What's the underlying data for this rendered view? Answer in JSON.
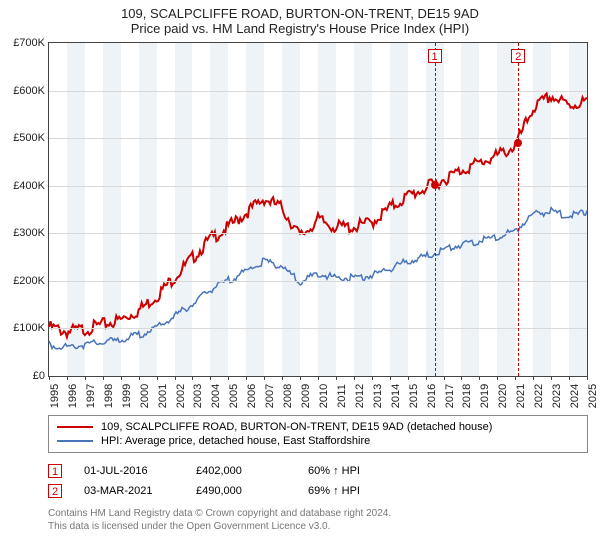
{
  "title_line1": "109, SCALPCLIFFE ROAD, BURTON-ON-TRENT, DE15 9AD",
  "title_line2": "Price paid vs. HM Land Registry's House Price Index (HPI)",
  "chart": {
    "type": "line",
    "background_color": "#ffffff",
    "grid_color": "#d9d9d9",
    "border_color": "#444444",
    "x_start_year": 1995,
    "x_end_year": 2025,
    "y_min": 0,
    "y_max": 700000,
    "y_tick_step": 100000,
    "y_tick_labels": [
      "£0",
      "£100K",
      "£200K",
      "£300K",
      "£400K",
      "£500K",
      "£600K",
      "£700K"
    ],
    "x_tick_years": [
      1995,
      1996,
      1997,
      1998,
      1999,
      2000,
      2001,
      2002,
      2003,
      2004,
      2005,
      2006,
      2007,
      2008,
      2009,
      2010,
      2011,
      2012,
      2013,
      2014,
      2015,
      2016,
      2017,
      2018,
      2019,
      2020,
      2021,
      2022,
      2023,
      2024,
      2025
    ],
    "alt_band_color": "#eef3f8",
    "label_fontsize": 11,
    "series": [
      {
        "name": "property",
        "color": "#cc0000",
        "width": 2,
        "legend": "109, SCALPCLIFFE ROAD, BURTON-ON-TRENT, DE15 9AD (detached house)",
        "values_per_year": {
          "1995": 110000,
          "1996": 100000,
          "1997": 105000,
          "1998": 115000,
          "1999": 125000,
          "2000": 145000,
          "2001": 175000,
          "2002": 215000,
          "2003": 255000,
          "2004": 295000,
          "2005": 320000,
          "2006": 350000,
          "2007": 380000,
          "2008": 360000,
          "2009": 300000,
          "2010": 335000,
          "2011": 320000,
          "2012": 320000,
          "2013": 330000,
          "2014": 360000,
          "2015": 385000,
          "2016": 402000,
          "2017": 420000,
          "2018": 440000,
          "2019": 455000,
          "2020": 470000,
          "2021": 490000,
          "2022": 570000,
          "2023": 595000,
          "2024": 575000,
          "2025": 585000
        }
      },
      {
        "name": "hpi",
        "color": "#4a74b8",
        "width": 1.5,
        "legend": "HPI: Average price, detached house, East Staffordshire",
        "values_per_year": {
          "1995": 70000,
          "1996": 65000,
          "1997": 70000,
          "1998": 75000,
          "1999": 80000,
          "2000": 90000,
          "2001": 105000,
          "2002": 130000,
          "2003": 155000,
          "2004": 185000,
          "2005": 205000,
          "2006": 225000,
          "2007": 245000,
          "2008": 235000,
          "2009": 200000,
          "2010": 220000,
          "2011": 210000,
          "2012": 210000,
          "2013": 215000,
          "2014": 230000,
          "2015": 245000,
          "2016": 255000,
          "2017": 270000,
          "2018": 280000,
          "2019": 288000,
          "2020": 295000,
          "2021": 310000,
          "2022": 345000,
          "2023": 350000,
          "2024": 340000,
          "2025": 348000
        }
      }
    ],
    "sale_points": [
      {
        "label": "1",
        "year": 2016.5,
        "value": 402000,
        "color": "#cc0000"
      },
      {
        "label": "2",
        "year": 2021.17,
        "value": 490000,
        "color": "#cc0000"
      }
    ]
  },
  "sales": [
    {
      "label": "1",
      "date": "01-JUL-2016",
      "price": "£402,000",
      "delta": "60% ↑ HPI"
    },
    {
      "label": "2",
      "date": "03-MAR-2021",
      "price": "£490,000",
      "delta": "69% ↑ HPI"
    }
  ],
  "footer_line1": "Contains HM Land Registry data © Crown copyright and database right 2024.",
  "footer_line2": "This data is licensed under the Open Government Licence v3.0."
}
